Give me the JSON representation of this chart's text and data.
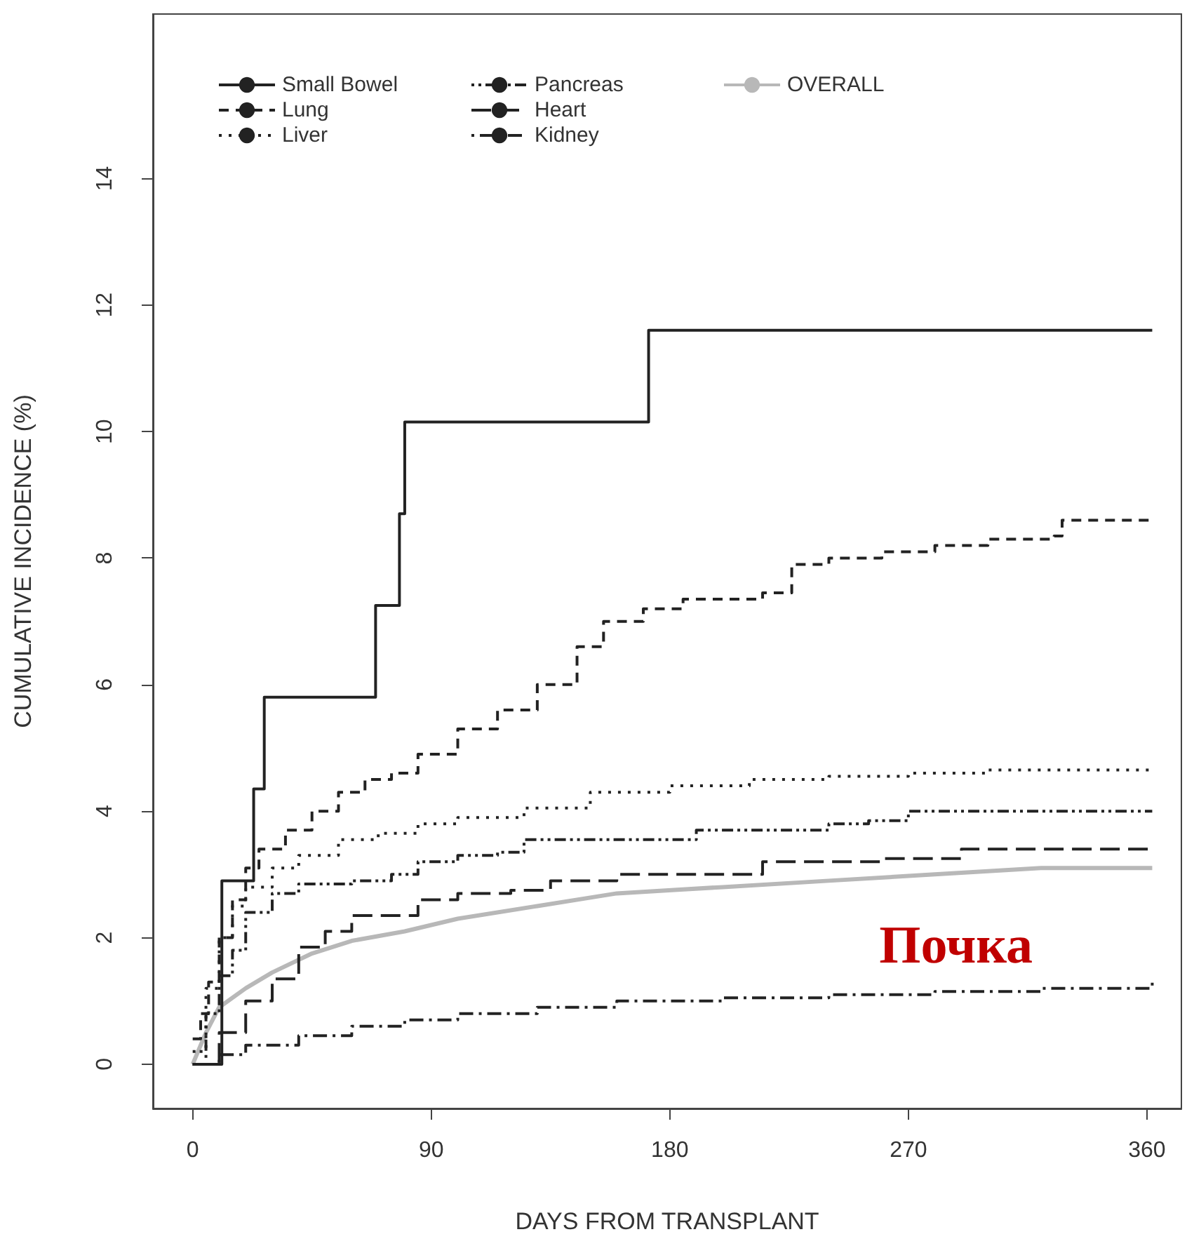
{
  "chart_data": {
    "type": "step",
    "xlabel": "DAYS FROM TRANSPLANT",
    "ylabel": "CUMULATIVE INCIDENCE (%)",
    "xlim": [
      -15,
      373
    ],
    "ylim": [
      -0.7,
      16.6
    ],
    "xticks": [
      0,
      90,
      180,
      270,
      360
    ],
    "yticks": [
      0,
      2,
      4,
      6,
      8,
      10,
      12,
      14
    ],
    "legend": "top left",
    "grid": false,
    "marker": "none",
    "annotations": [
      "Почка"
    ],
    "series": [
      {
        "name": "Small Bowel",
        "color": "#222222",
        "line_style": "solid",
        "x": [
          0,
          11,
          23,
          27,
          69,
          78,
          80,
          172,
          362
        ],
        "values": [
          0,
          2.9,
          4.35,
          5.8,
          7.25,
          8.7,
          10.15,
          11.6,
          11.6
        ]
      },
      {
        "name": "Lung",
        "color": "#222222",
        "line_style": "dashed",
        "x": [
          0,
          3,
          6,
          10,
          15,
          20,
          25,
          35,
          45,
          55,
          65,
          75,
          85,
          100,
          115,
          130,
          145,
          155,
          170,
          185,
          200,
          215,
          226,
          240,
          260,
          280,
          300,
          325,
          328,
          362
        ],
        "values": [
          0.4,
          0.8,
          1.3,
          2.0,
          2.6,
          3.1,
          3.4,
          3.7,
          4.0,
          4.3,
          4.5,
          4.6,
          4.9,
          5.3,
          5.6,
          6.0,
          6.6,
          7.0,
          7.2,
          7.35,
          7.35,
          7.45,
          7.9,
          8.0,
          8.1,
          8.2,
          8.3,
          8.35,
          8.6,
          8.6
        ]
      },
      {
        "name": "Liver",
        "color": "#222222",
        "line_style": "dotted",
        "x": [
          0,
          5,
          10,
          15,
          20,
          30,
          40,
          55,
          70,
          85,
          100,
          125,
          150,
          180,
          210,
          240,
          270,
          300,
          362
        ],
        "values": [
          0,
          1.2,
          2.0,
          2.5,
          2.8,
          3.1,
          3.3,
          3.55,
          3.65,
          3.8,
          3.9,
          4.05,
          4.3,
          4.4,
          4.5,
          4.55,
          4.6,
          4.65,
          4.7
        ]
      },
      {
        "name": "Pancreas",
        "color": "#222222",
        "line_style": "dashdotdot",
        "x": [
          0,
          5,
          10,
          15,
          20,
          30,
          40,
          60,
          75,
          85,
          100,
          115,
          125,
          145,
          175,
          190,
          210,
          240,
          255,
          270,
          362
        ],
        "values": [
          0.2,
          0.8,
          1.4,
          1.8,
          2.4,
          2.7,
          2.85,
          2.9,
          3.0,
          3.2,
          3.3,
          3.35,
          3.55,
          3.55,
          3.55,
          3.7,
          3.7,
          3.8,
          3.85,
          4.0,
          4.0
        ]
      },
      {
        "name": "Heart",
        "color": "#222222",
        "line_style": "longdash",
        "x": [
          0,
          10,
          20,
          30,
          40,
          50,
          60,
          75,
          85,
          100,
          120,
          135,
          160,
          200,
          215,
          260,
          290,
          362
        ],
        "values": [
          0,
          0.5,
          1.0,
          1.35,
          1.85,
          2.1,
          2.35,
          2.35,
          2.6,
          2.7,
          2.75,
          2.9,
          3.0,
          3.0,
          3.2,
          3.25,
          3.4,
          3.4
        ]
      },
      {
        "name": "Kidney",
        "color": "#222222",
        "line_style": "dashdot",
        "x": [
          0,
          10,
          20,
          40,
          60,
          80,
          100,
          130,
          160,
          200,
          240,
          280,
          320,
          362
        ],
        "values": [
          0,
          0.15,
          0.3,
          0.45,
          0.6,
          0.7,
          0.8,
          0.9,
          1.0,
          1.05,
          1.1,
          1.15,
          1.2,
          1.3
        ]
      },
      {
        "name": "OVERALL",
        "type": "line",
        "color": "#b8b8b8",
        "line_style": "solid",
        "x": [
          0,
          5,
          10,
          20,
          30,
          45,
          60,
          80,
          100,
          130,
          160,
          200,
          240,
          280,
          320,
          362
        ],
        "values": [
          0,
          0.5,
          0.9,
          1.2,
          1.45,
          1.75,
          1.95,
          2.1,
          2.3,
          2.5,
          2.7,
          2.8,
          2.9,
          3.0,
          3.1,
          3.1
        ]
      }
    ]
  }
}
